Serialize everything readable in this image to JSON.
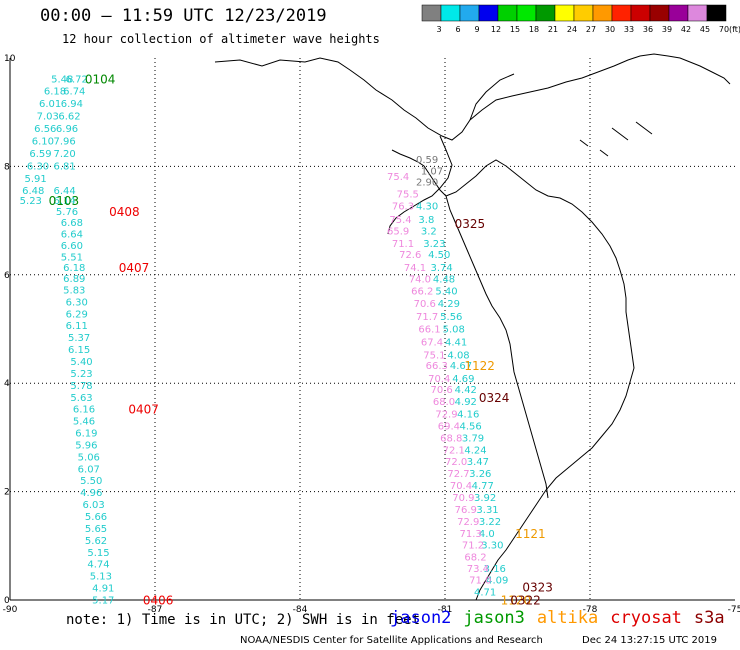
{
  "title": "00:00 – 11:59 UTC 12/23/2019",
  "subtitle": "12 hour collection of altimeter wave heights",
  "footer": {
    "note": "note: 1) Time is in UTC; 2) SWH is in feet",
    "credit": "NOAA/NESDIS Center for Satellite Applications and Research",
    "timestamp": "Dec 24 13:27:15 UTC 2019"
  },
  "satellites": [
    {
      "name": "jason2",
      "color": "#0000ee"
    },
    {
      "name": "jason3",
      "color": "#009900"
    },
    {
      "name": "altika",
      "color": "#ff9900"
    },
    {
      "name": "cryosat",
      "color": "#dd0000"
    },
    {
      "name": "s3a",
      "color": "#8b0000"
    }
  ],
  "chart_data": {
    "type": "scatter",
    "xlim": [
      -90,
      -75
    ],
    "ylim": [
      0,
      10
    ],
    "x_ticks": [
      -90,
      -87,
      -84,
      -81,
      -78,
      -75
    ],
    "y_ticks": [
      0,
      2,
      4,
      6,
      8,
      10
    ],
    "grid": true,
    "colorbar": {
      "unit": "(ft)",
      "ticks": [
        "3",
        "6",
        "9",
        "12",
        "15",
        "18",
        "21",
        "24",
        "27",
        "30",
        "33",
        "36",
        "39",
        "42",
        "45",
        "70"
      ],
      "colors": [
        "#808080",
        "#00e8e8",
        "#22aaee",
        "#0000ee",
        "#00d000",
        "#00e800",
        "#009900",
        "#ffff00",
        "#ffcc00",
        "#ff9900",
        "#ff2200",
        "#cc0000",
        "#990000",
        "#990099",
        "#dd88dd",
        "#000000"
      ]
    },
    "series": [
      {
        "name": "jason3",
        "color": "#22cccc",
        "points": [
          {
            "x": -89.15,
            "y": 9.62,
            "v": "5.48"
          },
          {
            "x": -88.85,
            "y": 9.62,
            "v": "6.72"
          },
          {
            "x": -89.3,
            "y": 9.4,
            "v": "6.18"
          },
          {
            "x": -88.9,
            "y": 9.4,
            "v": "6.74"
          },
          {
            "x": -89.4,
            "y": 9.17,
            "v": "6.01"
          },
          {
            "x": -88.95,
            "y": 9.17,
            "v": "6.94"
          },
          {
            "x": -89.45,
            "y": 8.94,
            "v": "7.03"
          },
          {
            "x": -89.0,
            "y": 8.94,
            "v": "6.62"
          },
          {
            "x": -89.5,
            "y": 8.71,
            "v": "6.56"
          },
          {
            "x": -89.05,
            "y": 8.71,
            "v": "6.96"
          },
          {
            "x": -89.55,
            "y": 8.48,
            "v": "6.10"
          },
          {
            "x": -89.1,
            "y": 8.48,
            "v": "7.96"
          },
          {
            "x": -89.6,
            "y": 8.25,
            "v": "6.59"
          },
          {
            "x": -89.1,
            "y": 8.25,
            "v": "7.20"
          },
          {
            "x": -89.65,
            "y": 8.02,
            "v": "6.30"
          },
          {
            "x": -89.1,
            "y": 8.02,
            "v": "6.81"
          },
          {
            "x": -89.7,
            "y": 7.79,
            "v": "5.91"
          },
          {
            "x": -89.75,
            "y": 7.56,
            "v": "6.48"
          },
          {
            "x": -89.1,
            "y": 7.56,
            "v": "6.44"
          },
          {
            "x": -89.8,
            "y": 7.38,
            "v": "5.23"
          },
          {
            "x": -89.1,
            "y": 7.38,
            "v": "6.14"
          },
          {
            "x": -89.05,
            "y": 7.18,
            "v": "5.76"
          },
          {
            "x": -88.95,
            "y": 6.97,
            "v": "6.68"
          },
          {
            "x": -88.95,
            "y": 6.76,
            "v": "6.64"
          },
          {
            "x": -88.95,
            "y": 6.55,
            "v": "6.60"
          },
          {
            "x": -88.95,
            "y": 6.34,
            "v": "5.51"
          },
          {
            "x": -88.9,
            "y": 6.14,
            "v": "6.18"
          },
          {
            "x": -88.9,
            "y": 5.94,
            "v": "6.89"
          },
          {
            "x": -88.9,
            "y": 5.73,
            "v": "5.83"
          },
          {
            "x": -88.85,
            "y": 5.51,
            "v": "6.30"
          },
          {
            "x": -88.85,
            "y": 5.29,
            "v": "6.29"
          },
          {
            "x": -88.85,
            "y": 5.07,
            "v": "6.11"
          },
          {
            "x": -88.8,
            "y": 4.85,
            "v": "5.37"
          },
          {
            "x": -88.8,
            "y": 4.63,
            "v": "6.15"
          },
          {
            "x": -88.75,
            "y": 4.41,
            "v": "5.40"
          },
          {
            "x": -88.75,
            "y": 4.19,
            "v": "5.23"
          },
          {
            "x": -88.75,
            "y": 3.97,
            "v": "5.78"
          },
          {
            "x": -88.75,
            "y": 3.75,
            "v": "5.63"
          },
          {
            "x": -88.7,
            "y": 3.53,
            "v": "6.16"
          },
          {
            "x": -88.7,
            "y": 3.31,
            "v": "5.46"
          },
          {
            "x": -88.65,
            "y": 3.09,
            "v": "6.19"
          },
          {
            "x": -88.65,
            "y": 2.87,
            "v": "5.96"
          },
          {
            "x": -88.6,
            "y": 2.65,
            "v": "5.06"
          },
          {
            "x": -88.6,
            "y": 2.43,
            "v": "6.07"
          },
          {
            "x": -88.55,
            "y": 2.21,
            "v": "5.50"
          },
          {
            "x": -88.55,
            "y": 1.99,
            "v": "4.96"
          },
          {
            "x": -88.5,
            "y": 1.77,
            "v": "6.03"
          },
          {
            "x": -88.45,
            "y": 1.55,
            "v": "5.66"
          },
          {
            "x": -88.45,
            "y": 1.33,
            "v": "5.65"
          },
          {
            "x": -88.45,
            "y": 1.11,
            "v": "5.62"
          },
          {
            "x": -88.4,
            "y": 0.89,
            "v": "5.15"
          },
          {
            "x": -88.4,
            "y": 0.67,
            "v": "4.74"
          },
          {
            "x": -88.35,
            "y": 0.45,
            "v": "5.13"
          },
          {
            "x": -88.3,
            "y": 0.23,
            "v": "4.91"
          },
          {
            "x": -88.3,
            "y": 0.01,
            "v": "5.17"
          },
          {
            "x": -81.6,
            "y": 7.28,
            "v": "4.30"
          },
          {
            "x": -81.55,
            "y": 7.03,
            "v": "3.8"
          },
          {
            "x": -81.5,
            "y": 6.82,
            "v": "3.2"
          },
          {
            "x": -81.45,
            "y": 6.59,
            "v": "3.23"
          },
          {
            "x": -81.35,
            "y": 6.38,
            "v": "4.50"
          },
          {
            "x": -81.3,
            "y": 6.14,
            "v": "3.74"
          },
          {
            "x": -81.25,
            "y": 5.93,
            "v": "4.48"
          },
          {
            "x": -81.2,
            "y": 5.71,
            "v": "5.40"
          },
          {
            "x": -81.15,
            "y": 5.48,
            "v": "4.29"
          },
          {
            "x": -81.1,
            "y": 5.24,
            "v": "5.56"
          },
          {
            "x": -81.05,
            "y": 5.01,
            "v": "5.08"
          },
          {
            "x": -81.0,
            "y": 4.77,
            "v": "4.41"
          },
          {
            "x": -80.95,
            "y": 4.53,
            "v": "4.08"
          },
          {
            "x": -80.9,
            "y": 4.34,
            "v": "4.67"
          },
          {
            "x": -80.85,
            "y": 4.1,
            "v": "4.69"
          },
          {
            "x": -80.8,
            "y": 3.89,
            "v": "4.42"
          },
          {
            "x": -80.8,
            "y": 3.67,
            "v": "4.92"
          },
          {
            "x": -80.75,
            "y": 3.44,
            "v": "4.16"
          },
          {
            "x": -80.7,
            "y": 3.22,
            "v": "4.56"
          },
          {
            "x": -80.65,
            "y": 3.0,
            "v": "3.79"
          },
          {
            "x": -80.6,
            "y": 2.78,
            "v": "4.24"
          },
          {
            "x": -80.55,
            "y": 2.56,
            "v": "3.47"
          },
          {
            "x": -80.5,
            "y": 2.34,
            "v": "3.26"
          },
          {
            "x": -80.45,
            "y": 2.12,
            "v": "4.77"
          },
          {
            "x": -80.4,
            "y": 1.9,
            "v": "3.92"
          },
          {
            "x": -80.35,
            "y": 1.68,
            "v": "3.31"
          },
          {
            "x": -80.3,
            "y": 1.46,
            "v": "3.22"
          },
          {
            "x": -80.3,
            "y": 1.24,
            "v": "4.0"
          },
          {
            "x": -80.25,
            "y": 1.02,
            "v": "3.30"
          },
          {
            "x": -80.2,
            "y": 0.59,
            "v": "3.16"
          },
          {
            "x": -80.15,
            "y": 0.38,
            "v": "4.09"
          },
          {
            "x": -80.4,
            "y": 0.16,
            "v": "4.71"
          }
        ]
      },
      {
        "name": "s3a",
        "color": "#ee88dd",
        "points": [
          {
            "x": -82.2,
            "y": 7.82,
            "v": "75.4"
          },
          {
            "x": -82.0,
            "y": 7.5,
            "v": "75.5"
          },
          {
            "x": -82.1,
            "y": 7.28,
            "v": "76.3"
          },
          {
            "x": -82.15,
            "y": 7.03,
            "v": "75.4"
          },
          {
            "x": -82.2,
            "y": 6.82,
            "v": "65.9"
          },
          {
            "x": -82.1,
            "y": 6.59,
            "v": "71.1"
          },
          {
            "x": -81.95,
            "y": 6.38,
            "v": "72.6"
          },
          {
            "x": -81.85,
            "y": 6.14,
            "v": "74.1"
          },
          {
            "x": -81.75,
            "y": 5.93,
            "v": "74.0"
          },
          {
            "x": -81.7,
            "y": 5.71,
            "v": "66.2"
          },
          {
            "x": -81.65,
            "y": 5.48,
            "v": "70.6"
          },
          {
            "x": -81.6,
            "y": 5.24,
            "v": "71.7"
          },
          {
            "x": -81.55,
            "y": 5.01,
            "v": "66.1"
          },
          {
            "x": -81.5,
            "y": 4.77,
            "v": "67.4"
          },
          {
            "x": -81.45,
            "y": 4.53,
            "v": "75.1"
          },
          {
            "x": -81.4,
            "y": 4.34,
            "v": "66.3"
          },
          {
            "x": -81.35,
            "y": 4.1,
            "v": "70.4"
          },
          {
            "x": -81.3,
            "y": 3.89,
            "v": "70.6"
          },
          {
            "x": -81.25,
            "y": 3.67,
            "v": "68.0"
          },
          {
            "x": -81.2,
            "y": 3.44,
            "v": "72.9"
          },
          {
            "x": -81.15,
            "y": 3.22,
            "v": "69.4"
          },
          {
            "x": -81.1,
            "y": 3.0,
            "v": "68.8"
          },
          {
            "x": -81.05,
            "y": 2.78,
            "v": "72.1"
          },
          {
            "x": -81.0,
            "y": 2.56,
            "v": "72.0"
          },
          {
            "x": -80.95,
            "y": 2.34,
            "v": "72.7"
          },
          {
            "x": -80.9,
            "y": 2.12,
            "v": "70.4"
          },
          {
            "x": -80.85,
            "y": 1.9,
            "v": "70.9"
          },
          {
            "x": -80.8,
            "y": 1.68,
            "v": "76.9"
          },
          {
            "x": -80.75,
            "y": 1.46,
            "v": "72.9"
          },
          {
            "x": -80.7,
            "y": 1.24,
            "v": "71.3"
          },
          {
            "x": -80.65,
            "y": 1.02,
            "v": "71.2"
          },
          {
            "x": -80.6,
            "y": 0.8,
            "v": "68.2"
          },
          {
            "x": -80.55,
            "y": 0.59,
            "v": "73.4"
          },
          {
            "x": -80.5,
            "y": 0.38,
            "v": "71.0"
          }
        ]
      },
      {
        "name": "jason2",
        "color": "#777777",
        "points": [
          {
            "x": -81.6,
            "y": 8.14,
            "v": "0.59"
          },
          {
            "x": -81.5,
            "y": 7.92,
            "v": "1.07"
          },
          {
            "x": -81.6,
            "y": 7.72,
            "v": "2.90"
          }
        ]
      }
    ],
    "pass_times": [
      {
        "label": "0104",
        "x": -88.45,
        "y": 9.62,
        "color": "#008800"
      },
      {
        "label": "0103",
        "x": -89.2,
        "y": 7.38,
        "color": "#008800"
      },
      {
        "label": "0408",
        "x": -87.95,
        "y": 7.18,
        "color": "#ee0000"
      },
      {
        "label": "0407",
        "x": -87.75,
        "y": 6.14,
        "color": "#ee0000"
      },
      {
        "label": "0407",
        "x": -87.55,
        "y": 3.53,
        "color": "#ee0000"
      },
      {
        "label": "0406",
        "x": -87.25,
        "y": 0.01,
        "color": "#ee0000"
      },
      {
        "label": "0325",
        "x": -80.8,
        "y": 6.96,
        "color": "#660000"
      },
      {
        "label": "1122",
        "x": -80.6,
        "y": 4.34,
        "color": "#ee9900"
      },
      {
        "label": "0324",
        "x": -80.3,
        "y": 3.75,
        "color": "#660000"
      },
      {
        "label": "1121",
        "x": -79.55,
        "y": 1.24,
        "color": "#ee9900"
      },
      {
        "label": "0323",
        "x": -79.4,
        "y": 0.25,
        "color": "#660000"
      },
      {
        "label": "1120",
        "x": -79.85,
        "y": 0.01,
        "color": "#ee9900"
      },
      {
        "label": "0322",
        "x": -79.65,
        "y": 0.01,
        "color": "#660000"
      }
    ]
  }
}
